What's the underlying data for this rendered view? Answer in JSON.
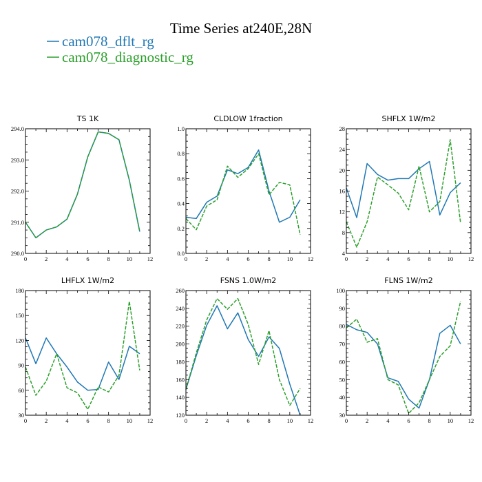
{
  "figure": {
    "title": "Time Series at240E,28N",
    "legend": [
      {
        "label": "cam078_dflt_rg",
        "color": "#1f77b4",
        "dash": "solid"
      },
      {
        "label": "cam078_diagnostic_rg",
        "color": "#2ca02c",
        "dash": "dashed"
      }
    ]
  },
  "chart_data": [
    {
      "type": "line",
      "title": "TS   1K",
      "xlim": [
        0,
        12
      ],
      "xticks": [
        0,
        2,
        4,
        6,
        8,
        10,
        12
      ],
      "ylim": [
        290.0,
        294.0
      ],
      "yticks": [
        "290.0",
        "291.0",
        "292.0",
        "293.0",
        "294.0"
      ],
      "x": [
        0,
        1,
        2,
        3,
        4,
        5,
        6,
        7,
        8,
        9,
        10,
        11
      ],
      "series": [
        {
          "name": "cam078_dflt_rg",
          "color": "#1f77b4",
          "dash": "solid",
          "values": [
            291.0,
            290.5,
            290.75,
            290.85,
            291.1,
            291.9,
            293.1,
            293.9,
            293.85,
            293.65,
            292.35,
            290.7
          ]
        },
        {
          "name": "cam078_diagnostic_rg",
          "color": "#2ca02c",
          "dash": "dashed",
          "values": [
            291.0,
            290.5,
            290.75,
            290.85,
            291.1,
            291.9,
            293.1,
            293.9,
            293.85,
            293.65,
            292.35,
            290.7
          ]
        }
      ]
    },
    {
      "type": "line",
      "title": "CLDLOW   1fraction",
      "xlim": [
        0,
        12
      ],
      "xticks": [
        0,
        2,
        4,
        6,
        8,
        10,
        12
      ],
      "ylim": [
        0.0,
        1.0
      ],
      "yticks": [
        "0.0",
        "0.2",
        "0.4",
        "0.6",
        "0.8",
        "1.0"
      ],
      "x": [
        0,
        1,
        2,
        3,
        4,
        5,
        6,
        7,
        8,
        9,
        10,
        11
      ],
      "series": [
        {
          "name": "cam078_dflt_rg",
          "color": "#1f77b4",
          "dash": "solid",
          "values": [
            0.29,
            0.28,
            0.41,
            0.46,
            0.67,
            0.64,
            0.69,
            0.83,
            0.5,
            0.25,
            0.29,
            0.43
          ]
        },
        {
          "name": "cam078_diagnostic_rg",
          "color": "#2ca02c",
          "dash": "dashed",
          "values": [
            0.28,
            0.19,
            0.38,
            0.43,
            0.7,
            0.61,
            0.68,
            0.8,
            0.47,
            0.57,
            0.55,
            0.15
          ]
        }
      ]
    },
    {
      "type": "line",
      "title": "SHFLX   1W/m2",
      "xlim": [
        0,
        12
      ],
      "xticks": [
        0,
        2,
        4,
        6,
        8,
        10,
        12
      ],
      "ylim": [
        4,
        28
      ],
      "yticks": [
        "4",
        "8",
        "12",
        "16",
        "20",
        "24",
        "28"
      ],
      "x": [
        0,
        1,
        2,
        3,
        4,
        5,
        6,
        7,
        8,
        9,
        10,
        11
      ],
      "series": [
        {
          "name": "cam078_dflt_rg",
          "color": "#1f77b4",
          "dash": "solid",
          "values": [
            16.6,
            10.9,
            21.3,
            19.2,
            18.1,
            18.4,
            18.4,
            20.3,
            21.7,
            11.4,
            15.7,
            17.6
          ]
        },
        {
          "name": "cam078_diagnostic_rg",
          "color": "#2ca02c",
          "dash": "dashed",
          "values": [
            10.1,
            5.2,
            10.1,
            18.7,
            17.2,
            15.6,
            12.4,
            20.8,
            12.0,
            14.0,
            25.9,
            9.8
          ]
        }
      ]
    },
    {
      "type": "line",
      "title": "LHFLX   1W/m2",
      "xlim": [
        0,
        12
      ],
      "xticks": [
        0,
        2,
        4,
        6,
        8,
        10,
        12
      ],
      "ylim": [
        30,
        180
      ],
      "yticks": [
        "30",
        "60",
        "90",
        "120",
        "150",
        "180"
      ],
      "x": [
        0,
        1,
        2,
        3,
        4,
        5,
        6,
        7,
        8,
        9,
        10,
        11
      ],
      "series": [
        {
          "name": "cam078_dflt_rg",
          "color": "#1f77b4",
          "dash": "solid",
          "values": [
            123,
            92,
            123,
            104,
            88,
            70,
            60,
            61,
            94,
            73,
            113,
            104
          ]
        },
        {
          "name": "cam078_diagnostic_rg",
          "color": "#2ca02c",
          "dash": "dashed",
          "values": [
            88,
            54,
            71,
            104,
            63,
            57,
            37,
            64,
            58,
            78,
            167,
            84
          ]
        }
      ]
    },
    {
      "type": "line",
      "title": "FSNS   1.0W/m2",
      "xlim": [
        0,
        12
      ],
      "xticks": [
        0,
        2,
        4,
        6,
        8,
        10,
        12
      ],
      "ylim": [
        120,
        260
      ],
      "yticks": [
        "120",
        "140",
        "160",
        "180",
        "200",
        "220",
        "240",
        "260"
      ],
      "x": [
        0,
        1,
        2,
        3,
        4,
        5,
        6,
        7,
        8,
        9,
        10,
        11
      ],
      "series": [
        {
          "name": "cam078_dflt_rg",
          "color": "#1f77b4",
          "dash": "solid",
          "values": [
            149,
            187,
            221,
            243,
            217,
            235,
            205,
            186,
            208,
            195,
            155,
            120
          ]
        },
        {
          "name": "cam078_diagnostic_rg",
          "color": "#2ca02c",
          "dash": "dashed",
          "values": [
            149,
            190,
            227,
            251,
            239,
            251,
            222,
            177,
            215,
            160,
            131,
            150
          ]
        }
      ]
    },
    {
      "type": "line",
      "title": "FLNS   1W/m2",
      "xlim": [
        0,
        12
      ],
      "xticks": [
        0,
        2,
        4,
        6,
        8,
        10,
        12
      ],
      "ylim": [
        30,
        100
      ],
      "yticks": [
        "30",
        "40",
        "50",
        "60",
        "70",
        "80",
        "90",
        "100"
      ],
      "x": [
        0,
        1,
        2,
        3,
        4,
        5,
        6,
        7,
        8,
        9,
        10,
        11
      ],
      "series": [
        {
          "name": "cam078_dflt_rg",
          "color": "#1f77b4",
          "dash": "solid",
          "values": [
            81,
            78,
            76.5,
            70,
            51,
            49,
            39,
            34,
            50,
            76,
            80.5,
            70
          ]
        },
        {
          "name": "cam078_diagnostic_rg",
          "color": "#2ca02c",
          "dash": "dashed",
          "values": [
            79,
            84,
            71,
            73,
            50,
            47,
            31,
            37,
            50,
            63,
            69,
            94
          ]
        }
      ]
    }
  ]
}
